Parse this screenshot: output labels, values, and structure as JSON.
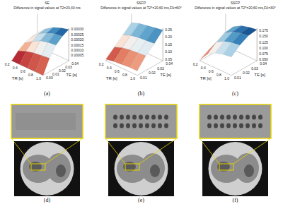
{
  "chart_data": [
    {
      "type": "surface",
      "title": "SE",
      "subtitle": "Difference in signal values at T2=20,40 ms",
      "x_label": "TR [s]",
      "y_label": "TE [s]",
      "x": [
        0.2,
        0.4,
        0.6,
        0.8,
        1.0
      ],
      "y": [
        0,
        0.01,
        0.02,
        0.03,
        0.04
      ],
      "z": [
        [
          0,
          0,
          0,
          0,
          0
        ],
        [
          6e-05,
          9e-05,
          0.00011,
          0.00012,
          0.00013
        ],
        [
          0.0001,
          0.00015,
          0.00019,
          0.00021,
          0.00022
        ],
        [
          0.00012,
          0.00019,
          0.00023,
          0.00026,
          0.00027
        ],
        [
          0.00013,
          0.0002,
          0.00025,
          0.00028,
          0.0003
        ]
      ],
      "xlim": [
        0.2,
        1.0
      ],
      "ylim": [
        0,
        0.04
      ],
      "zlim": [
        0,
        0.00031
      ],
      "xticks": [
        0.2,
        0.4,
        0.6,
        0.8,
        {
          "value": 1,
          "label": "1.0"
        }
      ],
      "yticks": [
        {
          "value": 0,
          "label": "0.00"
        },
        0.01,
        0.02,
        0.03,
        0.04
      ],
      "zticks": [
        5e-05,
        {
          "value": 0.0001,
          "label": "0.00010"
        },
        0.00015,
        {
          "value": 0.0002,
          "label": "0.00020"
        },
        0.00025,
        {
          "value": 0.0003,
          "label": "0.00030"
        }
      ]
    },
    {
      "type": "surface",
      "title": "SSFP",
      "subtitle": "Difference in signal values at T2*=20,60 ms,FA=60°",
      "x_label": "TR [s]",
      "y_label": "TE [s]",
      "x": [
        0.2,
        0.4,
        0.6,
        0.8,
        1.0
      ],
      "y": [
        0.01,
        0.02,
        0.03,
        0.04
      ],
      "z": [
        [
          0.05,
          0.06,
          0.065,
          0.07,
          0.07
        ],
        [
          0.1,
          0.12,
          0.13,
          0.135,
          0.14
        ],
        [
          0.15,
          0.17,
          0.18,
          0.185,
          0.19
        ],
        [
          0.2,
          0.22,
          0.23,
          0.24,
          0.25
        ]
      ],
      "xlim": [
        0.2,
        1.0
      ],
      "ylim": [
        0.01,
        0.04
      ],
      "zlim": [
        0.04,
        0.26
      ],
      "xticks": [
        0.2,
        0.4,
        0.6,
        0.8,
        {
          "value": 1,
          "label": "1.0"
        }
      ],
      "yticks": [
        0.01,
        0.02,
        0.03,
        0.04
      ],
      "zticks": [
        0.05,
        {
          "value": 0.1,
          "label": "0.10"
        },
        0.15,
        {
          "value": 0.2,
          "label": "0.20"
        },
        0.25
      ]
    },
    {
      "type": "surface",
      "title": "SSFP",
      "subtitle": "Difference in signal values at T2*=20,60 ms,FA=30°",
      "x_label": "TR [s]",
      "y_label": "TE [s]",
      "x": [
        0.2,
        0.4,
        0.6,
        0.8,
        1.0
      ],
      "y": [
        0.01,
        0.02,
        0.03,
        0.04
      ],
      "z": [
        [
          0.05,
          0.09,
          0.11,
          0.12,
          0.125
        ],
        [
          0.07,
          0.12,
          0.14,
          0.15,
          0.155
        ],
        [
          0.08,
          0.14,
          0.16,
          0.17,
          0.175
        ],
        [
          0.085,
          0.145,
          0.165,
          0.175,
          0.18
        ]
      ],
      "xlim": [
        0.2,
        1.0
      ],
      "ylim": [
        0.01,
        0.04
      ],
      "zlim": [
        0.045,
        0.185
      ],
      "xticks": [
        0.2,
        0.4,
        0.6,
        0.8,
        {
          "value": 1,
          "label": "1.0"
        }
      ],
      "yticks": [
        0.01,
        0.02,
        0.03,
        0.04
      ],
      "zticks": [
        {
          "value": 0.05,
          "label": "0.050"
        },
        0.075,
        {
          "value": 0.1,
          "label": "0.100"
        },
        0.125,
        {
          "value": 0.15,
          "label": "0.150"
        },
        0.175
      ]
    }
  ],
  "panel_labels": [
    "(a)",
    "(b)",
    "(c)",
    "(d)",
    "(e)",
    "(f)"
  ]
}
